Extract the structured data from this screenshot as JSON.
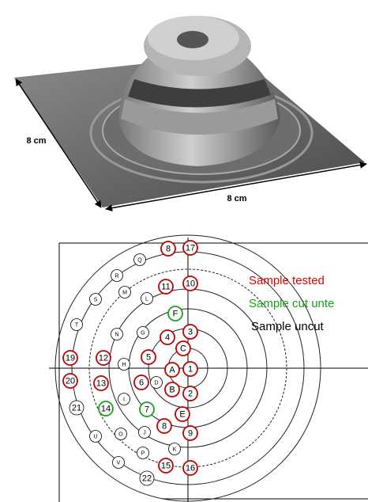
{
  "figure": {
    "dimension_left": "8 cm",
    "dimension_bottom": "8 cm"
  },
  "legend": [
    {
      "label": "Sample tested",
      "color": "#e00000"
    },
    {
      "label": "Sample cut unte",
      "color": "#1aa01a"
    },
    {
      "label": "Sample uncut",
      "color": "#000000"
    }
  ],
  "samples": [
    {
      "label": "8",
      "color": "#c00000"
    },
    {
      "label": "17",
      "color": "#c00000"
    },
    {
      "label": "Q",
      "color": "#000000"
    },
    {
      "label": "R",
      "color": "#000000"
    },
    {
      "label": "11",
      "color": "#c00000"
    },
    {
      "label": "10",
      "color": "#c00000"
    },
    {
      "label": "L",
      "color": "#000000"
    },
    {
      "label": "S",
      "color": "#000000"
    },
    {
      "label": "M",
      "color": "#000000"
    },
    {
      "label": "F",
      "color": "#1aa01a"
    },
    {
      "label": "G",
      "color": "#000000"
    },
    {
      "label": "4",
      "color": "#c00000"
    },
    {
      "label": "3",
      "color": "#c00000"
    },
    {
      "label": "T",
      "color": "#000000"
    },
    {
      "label": "N",
      "color": "#000000"
    },
    {
      "label": "C",
      "color": "#c00000"
    },
    {
      "label": "19",
      "color": "#c00000"
    },
    {
      "label": "12",
      "color": "#c00000"
    },
    {
      "label": "5",
      "color": "#c00000"
    },
    {
      "label": "H",
      "color": "#000000"
    },
    {
      "label": "A",
      "color": "#c00000"
    },
    {
      "label": "1",
      "color": "#c00000"
    },
    {
      "label": "20",
      "color": "#c00000"
    },
    {
      "label": "13",
      "color": "#c00000"
    },
    {
      "label": "6",
      "color": "#c00000"
    },
    {
      "label": "D",
      "color": "#000000"
    },
    {
      "label": "B",
      "color": "#c00000"
    },
    {
      "label": "2",
      "color": "#c00000"
    },
    {
      "label": "I",
      "color": "#000000"
    },
    {
      "label": "21",
      "color": "#000000"
    },
    {
      "label": "14",
      "color": "#1aa01a"
    },
    {
      "label": "7",
      "color": "#1aa01a"
    },
    {
      "label": "E",
      "color": "#c00000"
    },
    {
      "label": "J",
      "color": "#000000"
    },
    {
      "label": "8",
      "color": "#c00000"
    },
    {
      "label": "O",
      "color": "#000000"
    },
    {
      "label": "9",
      "color": "#c00000"
    },
    {
      "label": "U",
      "color": "#000000"
    },
    {
      "label": "K",
      "color": "#000000"
    },
    {
      "label": "P",
      "color": "#000000"
    },
    {
      "label": "V",
      "color": "#000000"
    },
    {
      "label": "15",
      "color": "#c00000"
    },
    {
      "label": "16",
      "color": "#c00000"
    },
    {
      "label": "22",
      "color": "#000000"
    }
  ]
}
